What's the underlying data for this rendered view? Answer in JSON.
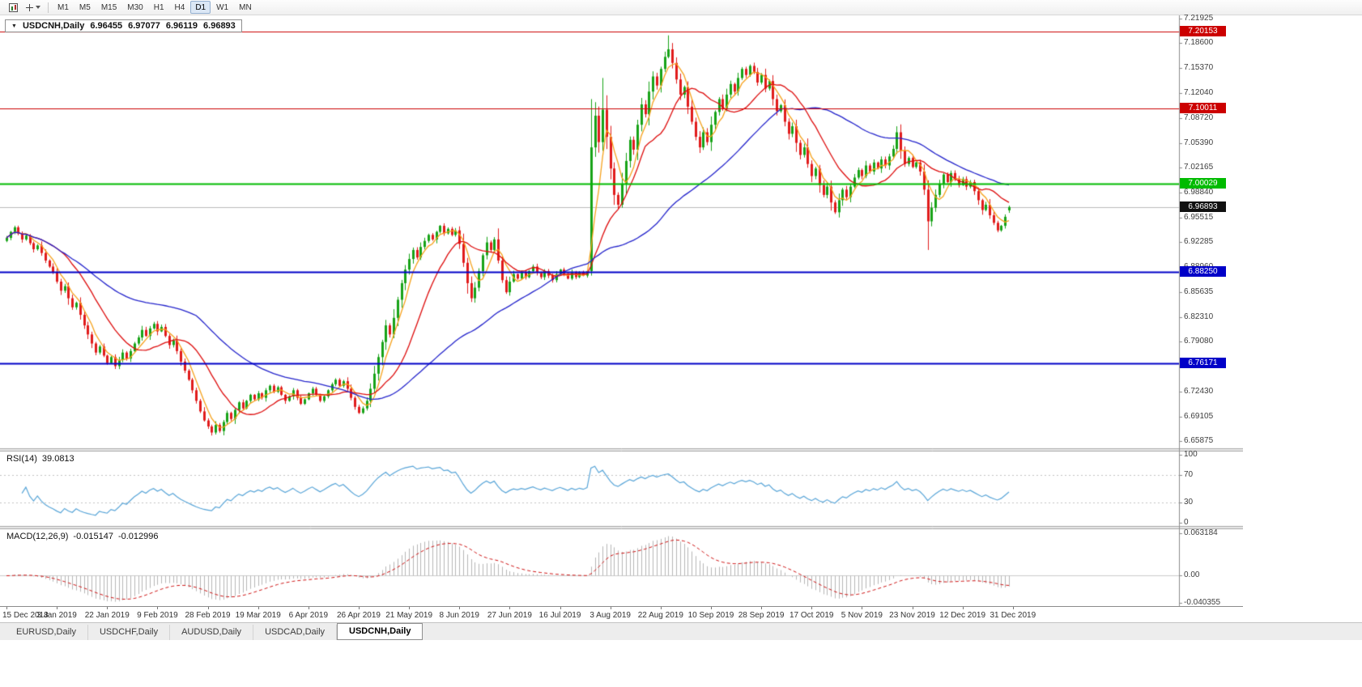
{
  "toolbar": {
    "icons": [
      {
        "name": "chart-tool-icon"
      },
      {
        "name": "crosshair-tool-icon"
      }
    ],
    "timeframes": [
      "M1",
      "M5",
      "M15",
      "M30",
      "H1",
      "H4",
      "D1",
      "W1",
      "MN"
    ],
    "active_timeframe": "D1"
  },
  "chart_header": {
    "dropdown_icon": "▼",
    "symbol_label": "USDCNH,Daily",
    "open": "6.96455",
    "high": "6.97077",
    "low": "6.96119",
    "close": "6.96893"
  },
  "rsi_panel": {
    "label": "RSI(14)",
    "value": "39.0813",
    "period": 14,
    "levels": [
      70,
      30
    ],
    "y_ticks": [
      "100",
      "70",
      "30",
      "0"
    ]
  },
  "macd_panel": {
    "label": "MACD(12,26,9)",
    "value": "-0.015147",
    "signal_value": "-0.012996",
    "fast": 12,
    "slow": 26,
    "signal": 9,
    "y_ticks": [
      "0.063184",
      "0.00",
      "-0.040355"
    ]
  },
  "price_markers": [
    {
      "label": "7.20153",
      "price": 7.20153,
      "color": "#cc0000",
      "kind": "resistance-line"
    },
    {
      "label": "7.10011",
      "price": 7.10011,
      "color": "#cc0000",
      "kind": "resistance-line"
    },
    {
      "label": "7.00029",
      "price": 7.00029,
      "color": "#00bb00",
      "kind": "support-line"
    },
    {
      "label": "6.96893",
      "price": 6.96893,
      "color": "#111111",
      "kind": "current-price"
    },
    {
      "label": "6.88250",
      "price": 6.8825,
      "color": "#0000c8",
      "kind": "support-line"
    },
    {
      "label": "6.76171",
      "price": 6.76171,
      "color": "#0000c8",
      "kind": "support-line"
    }
  ],
  "tabs": {
    "items": [
      {
        "label": "EURUSD,Daily",
        "active": false
      },
      {
        "label": "USDCHF,Daily",
        "active": false
      },
      {
        "label": "AUDUSD,Daily",
        "active": false
      },
      {
        "label": "USDCAD,Daily",
        "active": false
      },
      {
        "label": "USDCNH,Daily",
        "active": true
      }
    ]
  },
  "chart_data": {
    "type": "candlestick",
    "symbol": "USDCNH",
    "timeframe": "Daily",
    "last_ohlc": {
      "open": 6.96455,
      "high": 6.97077,
      "low": 6.96119,
      "close": 6.96893
    },
    "y_ticks": [
      "7.21925",
      "7.18600",
      "7.15370",
      "7.12040",
      "7.08720",
      "7.05390",
      "7.02165",
      "6.98840",
      "6.95515",
      "6.92285",
      "6.88960",
      "6.85635",
      "6.82310",
      "6.79080",
      "6.75755",
      "6.72430",
      "6.69105",
      "6.65875"
    ],
    "x_labels": [
      "15 Dec 2018",
      "3 Jan 2019",
      "22 Jan 2019",
      "9 Feb 2019",
      "28 Feb 2019",
      "19 Mar 2019",
      "6 Apr 2019",
      "26 Apr 2019",
      "21 May 2019",
      "8 Jun 2019",
      "27 Jun 2019",
      "16 Jul 2019",
      "3 Aug 2019",
      "22 Aug 2019",
      "10 Sep 2019",
      "28 Sep 2019",
      "17 Oct 2019",
      "5 Nov 2019",
      "23 Nov 2019",
      "12 Dec 2019",
      "31 Dec 2019"
    ],
    "label_step": 13,
    "current_price": 6.96893,
    "levels": [
      {
        "price": 7.20153,
        "color": "#cc0000",
        "width": 1
      },
      {
        "price": 7.10011,
        "color": "#cc0000",
        "width": 1
      },
      {
        "price": 7.00029,
        "color": "#00bb00",
        "width": 2
      },
      {
        "price": 6.8825,
        "color": "#0000c8",
        "width": 2
      },
      {
        "price": 6.76171,
        "color": "#0000c8",
        "width": 2
      }
    ],
    "moving_averages": [
      {
        "period": 5,
        "color": "#f6a21c"
      },
      {
        "period": 15,
        "color": "#de0d0d"
      },
      {
        "period": 50,
        "color": "#2525cc"
      }
    ],
    "colors": {
      "up": "#17a317",
      "down": "#e11b1b",
      "rsi": "#58a5d8",
      "macd_hist": "#b6b6b6",
      "macd_signal": "#d01515",
      "bid_line": "#bcbcbc"
    },
    "closes": [
      6.928,
      6.936,
      6.942,
      6.934,
      6.926,
      6.931,
      6.921,
      6.913,
      6.918,
      6.908,
      6.898,
      6.89,
      6.882,
      6.87,
      6.858,
      6.864,
      6.848,
      6.836,
      6.842,
      6.826,
      6.812,
      6.8,
      6.788,
      6.776,
      6.784,
      6.772,
      6.762,
      6.77,
      6.758,
      6.766,
      6.776,
      6.768,
      6.778,
      6.788,
      6.796,
      6.806,
      6.798,
      6.808,
      6.814,
      6.804,
      6.81,
      6.798,
      6.786,
      6.792,
      6.778,
      6.764,
      6.752,
      6.74,
      6.726,
      6.712,
      6.698,
      6.686,
      6.678,
      6.67,
      6.68,
      6.672,
      6.684,
      6.696,
      6.688,
      6.7,
      6.71,
      6.702,
      6.712,
      6.72,
      6.714,
      6.722,
      6.716,
      6.726,
      6.732,
      6.724,
      6.73,
      6.72,
      6.712,
      6.718,
      6.726,
      6.716,
      6.708,
      6.714,
      6.722,
      6.728,
      6.72,
      6.712,
      6.718,
      6.726,
      6.734,
      6.74,
      6.732,
      6.738,
      6.728,
      6.716,
      6.704,
      6.696,
      6.702,
      6.712,
      6.728,
      6.748,
      6.77,
      6.79,
      6.812,
      6.8,
      6.822,
      6.846,
      6.868,
      6.886,
      6.9,
      6.912,
      6.902,
      6.916,
      6.924,
      6.932,
      6.926,
      6.936,
      6.944,
      6.934,
      6.94,
      6.932,
      6.938,
      6.92,
      6.895,
      6.868,
      6.848,
      6.862,
      6.884,
      6.905,
      6.922,
      6.912,
      6.926,
      6.898,
      6.872,
      6.856,
      6.87,
      6.88,
      6.874,
      6.882,
      6.876,
      6.884,
      6.89,
      6.882,
      6.876,
      6.884,
      6.878,
      6.872,
      6.88,
      6.886,
      6.88,
      6.874,
      6.882,
      6.876,
      6.882,
      6.878,
      6.884,
      7.048,
      7.09,
      7.055,
      7.098,
      7.062,
      7.02,
      6.985,
      6.972,
      7.0,
      7.03,
      7.058,
      7.045,
      7.078,
      7.105,
      7.092,
      7.122,
      7.142,
      7.13,
      7.152,
      7.168,
      7.178,
      7.16,
      7.138,
      7.118,
      7.128,
      7.102,
      7.082,
      7.062,
      7.048,
      7.068,
      7.055,
      7.078,
      7.095,
      7.112,
      7.1,
      7.118,
      7.132,
      7.122,
      7.14,
      7.152,
      7.144,
      7.156,
      7.148,
      7.134,
      7.144,
      7.126,
      7.136,
      7.112,
      7.096,
      7.104,
      7.082,
      7.066,
      7.076,
      7.054,
      7.038,
      7.048,
      7.026,
      7.01,
      7.02,
      6.998,
      6.985,
      6.996,
      6.975,
      6.962,
      6.978,
      6.992,
      6.982,
      6.996,
      7.008,
      7.018,
      7.01,
      7.024,
      7.016,
      7.028,
      7.02,
      7.032,
      7.024,
      7.036,
      7.046,
      7.068,
      7.044,
      7.026,
      7.034,
      7.022,
      7.028,
      7.016,
      6.992,
      6.95,
      6.968,
      6.985,
      7.0,
      7.012,
      7.002,
      7.014,
      7.006,
      6.998,
      7.006,
      6.996,
      7.002,
      6.99,
      6.978,
      6.965,
      6.972,
      6.958,
      6.948,
      6.938,
      6.944,
      6.956,
      6.96893
    ],
    "overrides": {
      "53": {
        "l": 6.666
      },
      "120": {
        "l": 6.843
      },
      "151": {
        "o": 6.884,
        "h": 7.112,
        "l": 6.878
      },
      "154": {
        "h": 7.14
      },
      "171": {
        "h": 7.1965
      },
      "238": {
        "l": 6.912
      },
      "259": {
        "o": 6.96455,
        "h": 6.97077,
        "l": 6.96119
      }
    }
  }
}
